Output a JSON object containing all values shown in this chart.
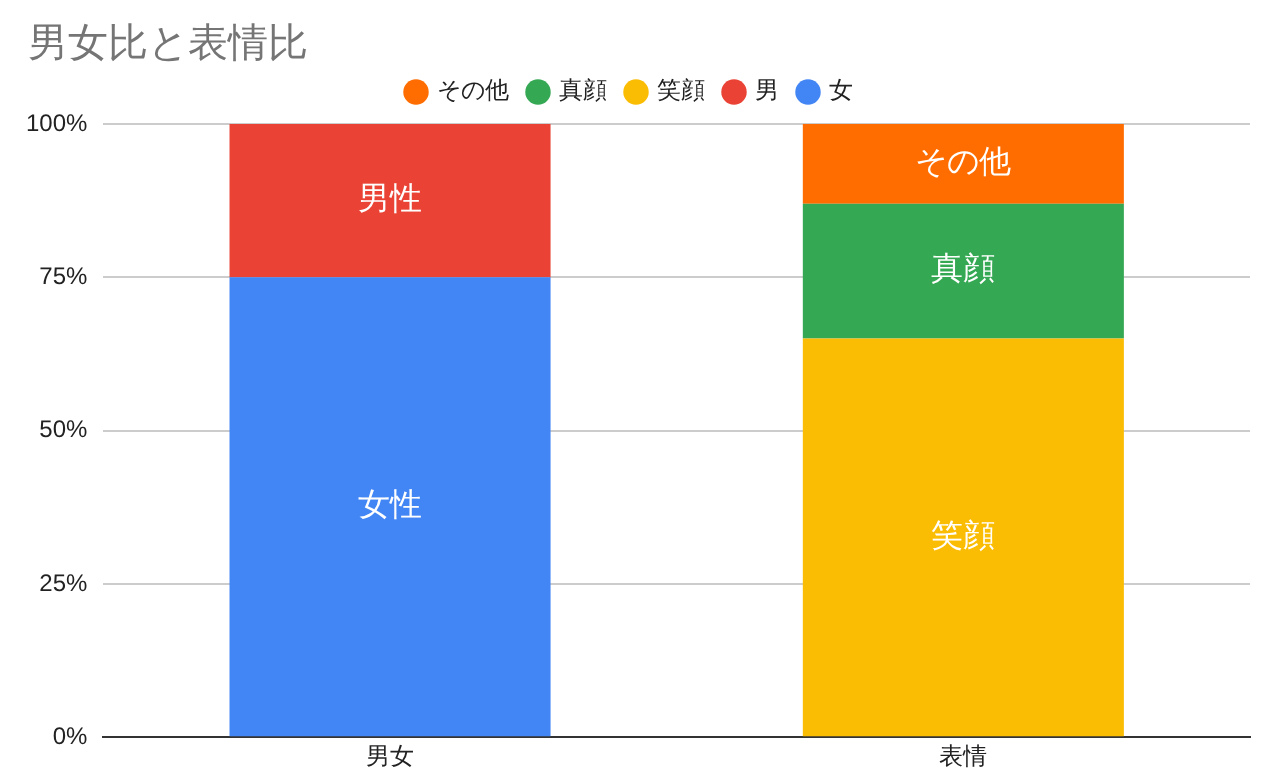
{
  "chart_data": {
    "type": "bar",
    "title": "男女比と表情比",
    "categories": [
      "男女",
      "表情"
    ],
    "stacked": true,
    "legend": "top",
    "grid": "y",
    "ylim": [
      0,
      100
    ],
    "yticks": [
      {
        "value": 0,
        "label": "0%"
      },
      {
        "value": 25,
        "label": "25%"
      },
      {
        "value": 50,
        "label": "50%"
      },
      {
        "value": 75,
        "label": "75%"
      },
      {
        "value": 100,
        "label": "100%"
      }
    ],
    "series": [
      {
        "name": "女",
        "color": "#4285f4",
        "values": [
          75,
          null
        ],
        "value_labels": [
          "女性",
          null
        ]
      },
      {
        "name": "男",
        "color": "#ea4335",
        "values": [
          25,
          null
        ],
        "value_labels": [
          "男性",
          null
        ]
      },
      {
        "name": "笑顔",
        "color": "#fbbc04",
        "values": [
          null,
          65
        ],
        "value_labels": [
          null,
          "笑顔"
        ]
      },
      {
        "name": "真顔",
        "color": "#34a853",
        "values": [
          null,
          22
        ],
        "value_labels": [
          null,
          "真顔"
        ]
      },
      {
        "name": "その他",
        "color": "#ff6d01",
        "values": [
          null,
          13
        ],
        "value_labels": [
          null,
          "その他"
        ]
      }
    ]
  }
}
